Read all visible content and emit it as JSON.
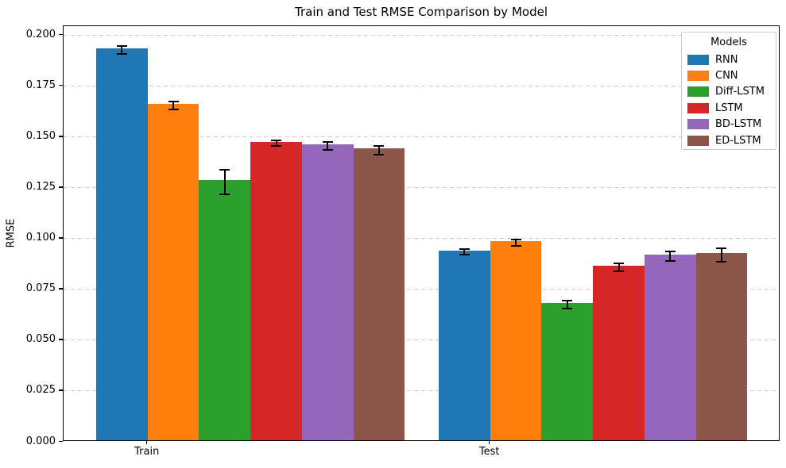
{
  "title": "Train and Test RMSE Comparison by Model",
  "ylabel": "RMSE",
  "legend": {
    "title": "Models"
  },
  "chart_data": {
    "type": "bar",
    "title": "Train and Test RMSE Comparison by Model",
    "xlabel": "",
    "ylabel": "RMSE",
    "categories": [
      "Train",
      "Test"
    ],
    "series": [
      {
        "name": "RNN",
        "color": "#1f77b4",
        "values": [
          0.193,
          0.0935
        ],
        "errors": [
          0.002,
          0.0013
        ]
      },
      {
        "name": "CNN",
        "color": "#ff7f0e",
        "values": [
          0.1655,
          0.098
        ],
        "errors": [
          0.0019,
          0.0015
        ]
      },
      {
        "name": "Diff-LSTM",
        "color": "#2ca02c",
        "values": [
          0.128,
          0.0675
        ],
        "errors": [
          0.006,
          0.002
        ]
      },
      {
        "name": "LSTM",
        "color": "#d62728",
        "values": [
          0.147,
          0.086
        ],
        "errors": [
          0.0015,
          0.002
        ]
      },
      {
        "name": "BD-LSTM",
        "color": "#9467bd",
        "values": [
          0.1455,
          0.0915
        ],
        "errors": [
          0.002,
          0.0023
        ]
      },
      {
        "name": "ED-LSTM",
        "color": "#8c564b",
        "values": [
          0.1435,
          0.092
        ],
        "errors": [
          0.002,
          0.0032
        ]
      }
    ],
    "error_bars": true,
    "ylim": [
      0,
      0.2046
    ],
    "ytick_values": [
      0.0,
      0.025,
      0.05,
      0.075,
      0.1,
      0.125,
      0.15,
      0.175,
      0.2
    ],
    "ytick_labels": [
      "0.000",
      "0.025",
      "0.050",
      "0.075",
      "0.100",
      "0.125",
      "0.150",
      "0.175",
      "0.200"
    ],
    "grid": "horizontal-dashed",
    "grid_color": "#c9c9c9",
    "legend_position": "upper right",
    "legend_title": "Models"
  }
}
